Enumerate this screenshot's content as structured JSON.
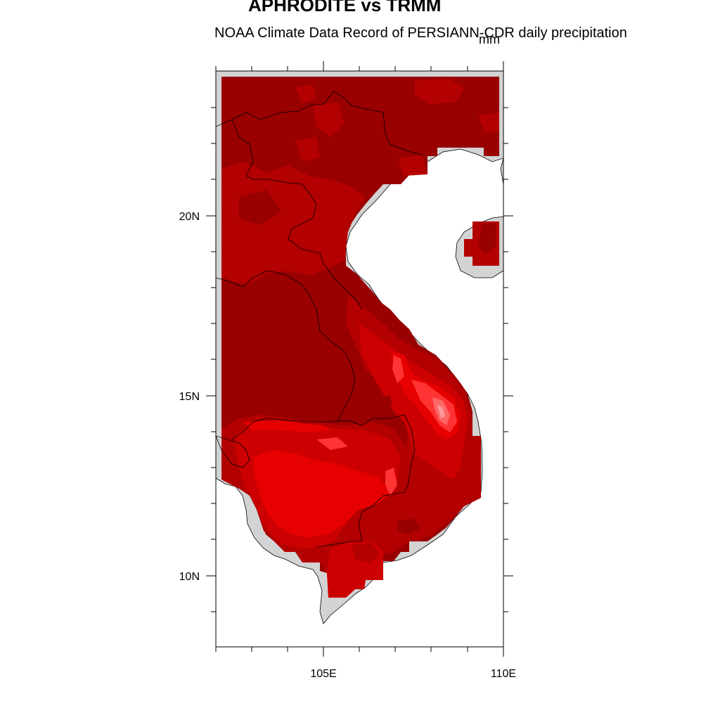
{
  "title": "APHRODITE vs TRMM",
  "subtitle": "NOAA Climate Data Record of PERSIANN-CDR daily precipitation",
  "units": "mm",
  "map": {
    "projection": "lat-lon",
    "lon_range": [
      "102E",
      "110E"
    ],
    "lat_range": [
      "8N",
      "24N"
    ],
    "x_tick_labels": [
      "105E",
      "110E"
    ],
    "y_tick_labels": [
      "20N",
      "15N",
      "10N"
    ],
    "land_color": "#d3d3d3",
    "ocean_color": "#ffffff",
    "field_colors": {
      "low": "#990000",
      "mid_low": "#b30000",
      "mid": "#cc0000",
      "mid_high": "#e60000",
      "high": "#ff3333",
      "peak": "#ff9999"
    }
  }
}
